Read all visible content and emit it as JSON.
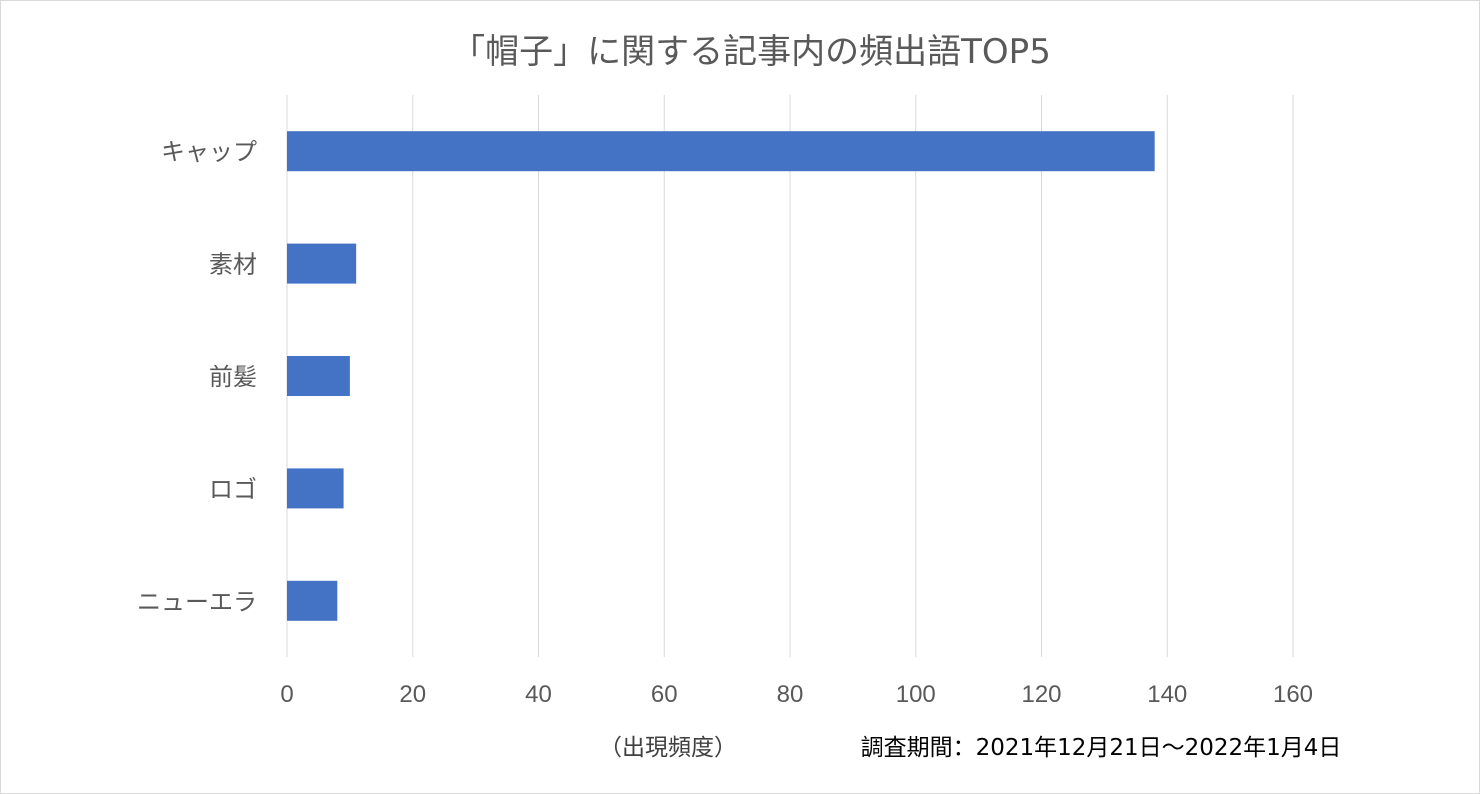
{
  "chart_data": {
    "type": "bar",
    "orientation": "horizontal",
    "title": "「帽子」に関する記事内の頻出語TOP5",
    "categories": [
      "キャップ",
      "素材",
      "前髪",
      "ロゴ",
      "ニューエラ"
    ],
    "values": [
      138,
      11,
      10,
      9,
      8
    ],
    "xlabel": "（出現頻度）",
    "ylabel": "",
    "xlim": [
      0,
      160
    ],
    "xticks": [
      "0",
      "20",
      "40",
      "60",
      "80",
      "100",
      "120",
      "140",
      "160"
    ],
    "grid": true,
    "legend": "none",
    "bar_color": "#4472c4",
    "annotation": "調査期間：2021年12月21日～2022年1月4日"
  }
}
